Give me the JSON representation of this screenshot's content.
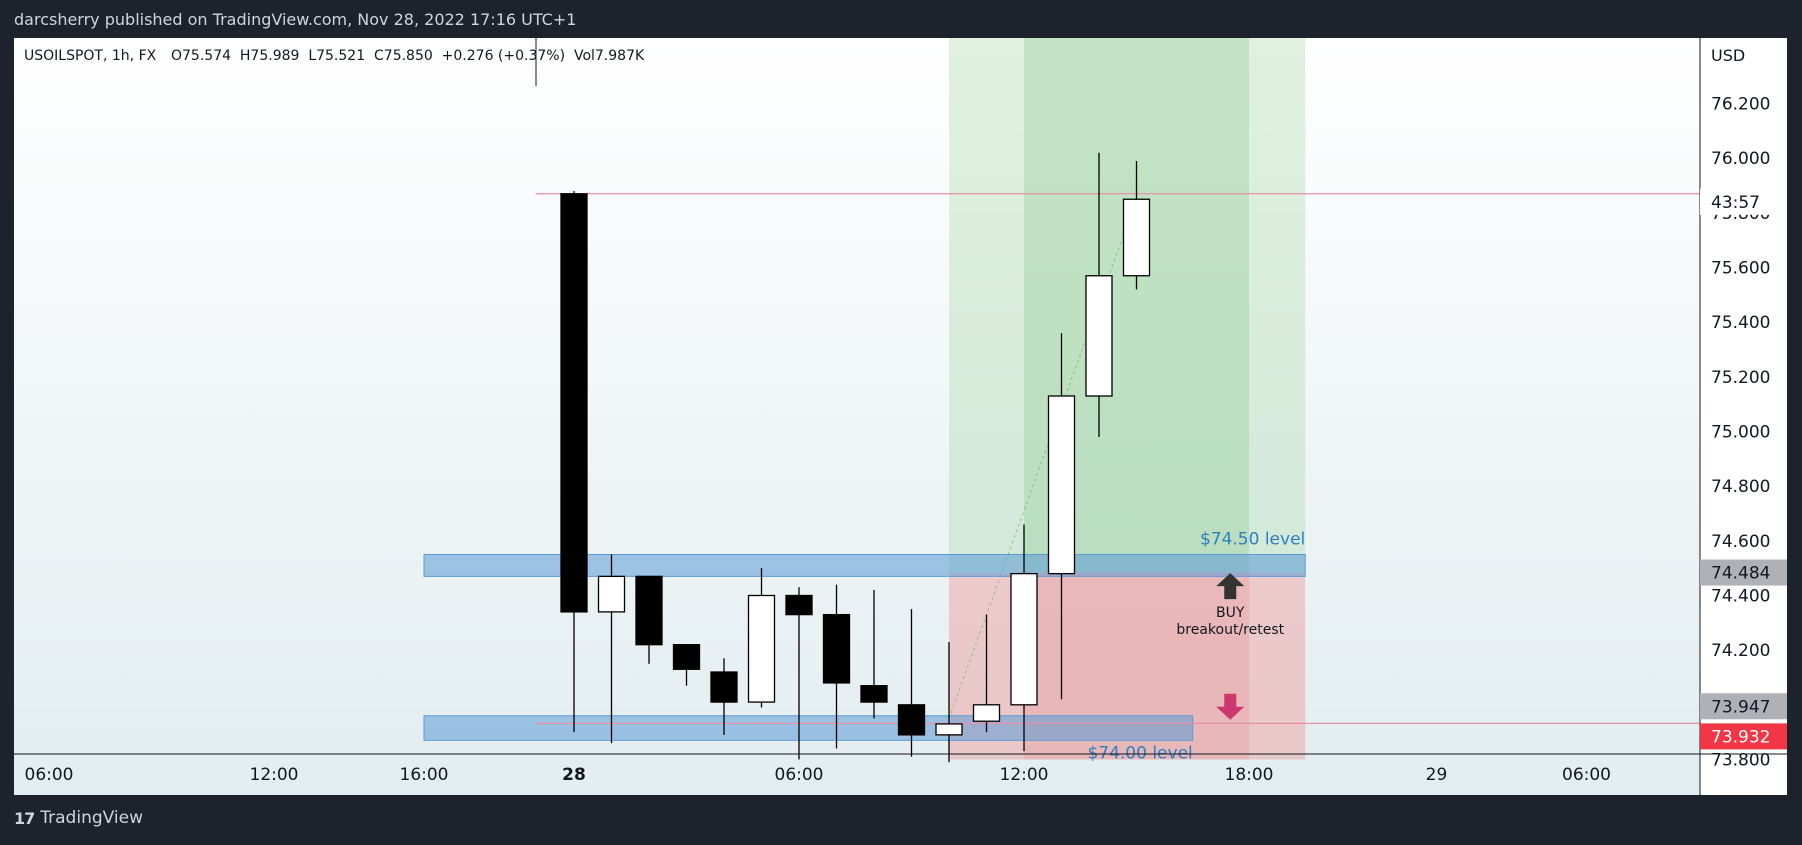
{
  "header": {
    "published_text": "darcsherry published on TradingView.com, Nov 28, 2022 17:16 UTC+1"
  },
  "legend": {
    "symbol": "USOILSPOT, 1h, FX",
    "ohlc": "O75.574  H75.989  L75.521  C75.850  +0.276 (+0.37%)  Vol7.987K"
  },
  "footer": {
    "brand": "TradingView",
    "logo_icon": "tradingview-logo-icon"
  },
  "colors": {
    "background": "#1e222d",
    "bull": "#ffffff",
    "bear": "#000000",
    "zone": "#5b9bd5",
    "target": "#a5d6a7",
    "stop": "#ef9a9a",
    "current_price": "#f23645",
    "annotation": "#2f7fc1"
  },
  "chart_data": {
    "type": "candlestick",
    "currency": "USD",
    "ylim": [
      73.82,
      76.44
    ],
    "y_ticks": [
      76.2,
      76.0,
      75.8,
      75.6,
      75.4,
      75.2,
      75.0,
      74.8,
      74.6,
      74.4,
      74.2,
      74.0,
      73.8
    ],
    "x_ticks": [
      {
        "label": "06:00",
        "t": -42,
        "bold": false
      },
      {
        "label": "12:00",
        "t": -36,
        "bold": false
      },
      {
        "label": "16:00",
        "t": -32,
        "bold": false
      },
      {
        "label": "28",
        "t": -28,
        "bold": true
      },
      {
        "label": "06:00",
        "t": -22,
        "bold": false
      },
      {
        "label": "12:00",
        "t": -16,
        "bold": false
      },
      {
        "label": "18:00",
        "t": -10,
        "bold": false
      },
      {
        "label": "29",
        "t": -5,
        "bold": false
      },
      {
        "label": "06:00",
        "t": -1,
        "bold": false
      }
    ],
    "candles": [
      {
        "t": -28,
        "o": 75.87,
        "h": 75.88,
        "l": 73.9,
        "c": 74.34
      },
      {
        "t": -27,
        "o": 74.34,
        "h": 74.55,
        "l": 73.86,
        "c": 74.47
      },
      {
        "t": -26,
        "o": 74.47,
        "h": 74.47,
        "l": 74.15,
        "c": 74.22
      },
      {
        "t": -25,
        "o": 74.22,
        "h": 74.22,
        "l": 74.07,
        "c": 74.13
      },
      {
        "t": -24,
        "o": 74.12,
        "h": 74.17,
        "l": 73.89,
        "c": 74.01
      },
      {
        "t": -23,
        "o": 74.01,
        "h": 74.5,
        "l": 73.99,
        "c": 74.4
      },
      {
        "t": -22,
        "o": 74.4,
        "h": 74.43,
        "l": 73.8,
        "c": 74.33
      },
      {
        "t": -21,
        "o": 74.33,
        "h": 74.44,
        "l": 73.84,
        "c": 74.08
      },
      {
        "t": -20,
        "o": 74.07,
        "h": 74.42,
        "l": 73.95,
        "c": 74.01
      },
      {
        "t": -19,
        "o": 74.0,
        "h": 74.35,
        "l": 73.81,
        "c": 73.89
      },
      {
        "t": -18,
        "o": 73.89,
        "h": 74.23,
        "l": 73.79,
        "c": 73.93
      },
      {
        "t": -17,
        "o": 73.94,
        "h": 74.33,
        "l": 73.9,
        "c": 74.0
      },
      {
        "t": -16,
        "o": 74.0,
        "h": 74.66,
        "l": 73.83,
        "c": 74.48
      },
      {
        "t": -15,
        "o": 74.48,
        "h": 75.36,
        "l": 74.02,
        "c": 75.13
      },
      {
        "t": -14,
        "o": 75.13,
        "h": 76.02,
        "l": 74.98,
        "c": 75.57
      },
      {
        "t": -13,
        "o": 75.57,
        "h": 75.99,
        "l": 75.52,
        "c": 75.85
      }
    ],
    "zones": [
      {
        "label": "$74.50 level",
        "from": 74.47,
        "to": 74.55,
        "t_start": -32,
        "t_end": -8.5
      },
      {
        "label": "$74.00 level",
        "from": 73.87,
        "to": 73.96,
        "t_start": -32,
        "t_end": -11.5
      }
    ],
    "position": {
      "type": "long",
      "t_start": -18,
      "t_end": -8.5,
      "entry": 74.484,
      "target": 76.44,
      "stop": 73.8,
      "highlight_t_start": -16,
      "highlight_t_end": -10
    },
    "annotations": [
      {
        "text": "BUY",
        "sub": "breakout/retest",
        "price": 74.35,
        "t": -10.5
      }
    ],
    "lines": [
      {
        "price": 75.87,
        "color": "#e891a6"
      },
      {
        "price": 73.932,
        "color": "#e891a6"
      }
    ],
    "price_labels": [
      {
        "text": "43:57",
        "price": 75.85,
        "kind": "timer"
      },
      {
        "text": "74.484",
        "price": 74.484,
        "kind": "grey"
      },
      {
        "text": "73.947",
        "price": 73.947,
        "kind": "grey"
      },
      {
        "text": "73.932",
        "price": 73.932,
        "kind": "red"
      }
    ]
  }
}
